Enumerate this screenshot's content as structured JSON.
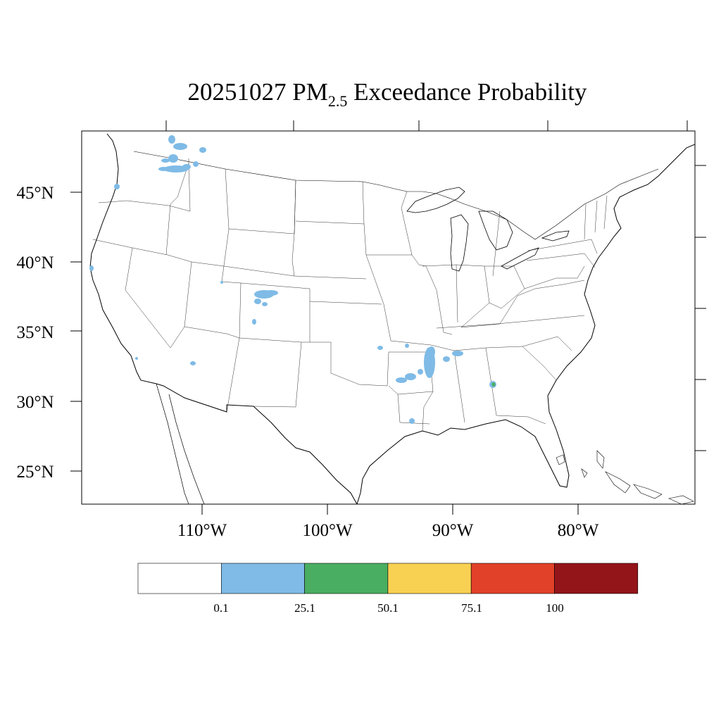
{
  "title": {
    "date": "20251027",
    "pm_prefix": "PM",
    "pm_sub": "2.5",
    "rest": "Exceedance Probability"
  },
  "lat_labels": [
    "45°N",
    "40°N",
    "35°N",
    "30°N",
    "25°N"
  ],
  "lon_labels": [
    "110°W",
    "100°W",
    "90°W",
    "80°W"
  ],
  "legend": {
    "bins": [
      {
        "color": "#ffffff"
      },
      {
        "color": "#7fbbe6"
      },
      {
        "color": "#4aae62"
      },
      {
        "color": "#f8d052"
      },
      {
        "color": "#e24129"
      },
      {
        "color": "#941519"
      }
    ],
    "labels": [
      "0.1",
      "25.1",
      "50.1",
      "75.1",
      "100"
    ]
  },
  "colors": {
    "low": "#7fbbe6",
    "mid": "#4aae62",
    "outline": "#000000"
  }
}
